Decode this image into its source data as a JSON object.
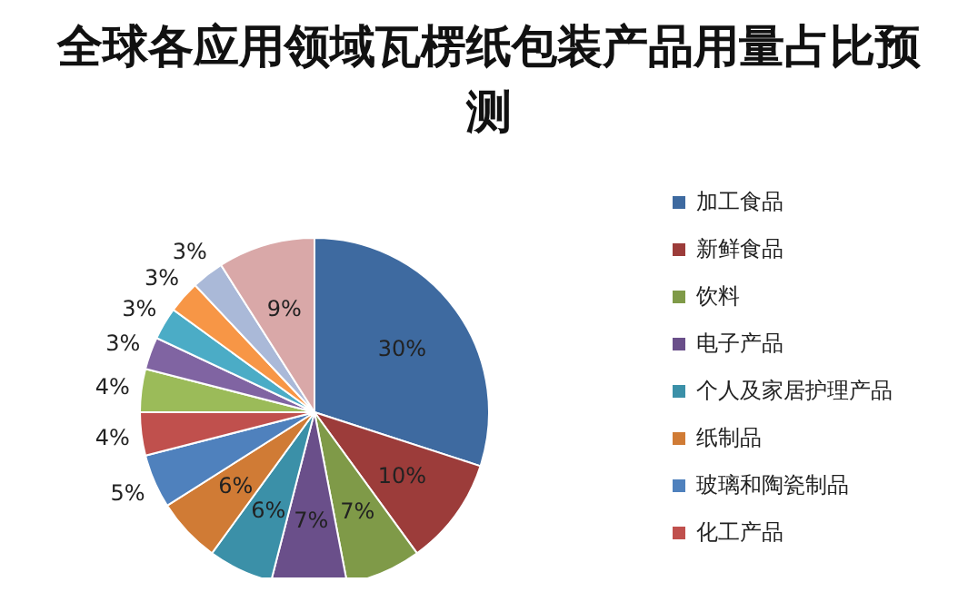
{
  "chart_data": {
    "type": "pie",
    "title": "全球各应用领域瓦楞纸包装产品用量占比预测",
    "categories": [
      "加工食品",
      "新鲜食品",
      "饮料",
      "电子产品",
      "个人及家居护理产品",
      "纸制品",
      "玻璃和陶瓷制品",
      "化工产品",
      null,
      null,
      null,
      null,
      null,
      null
    ],
    "values": [
      30,
      10,
      7,
      7,
      6,
      6,
      5,
      4,
      4,
      3,
      3,
      3,
      3,
      9
    ],
    "value_labels": [
      "30%",
      "10%",
      "7%",
      "7%",
      "6%",
      "6%",
      "5%",
      "4%",
      "4%",
      "3%",
      "3%",
      "3%",
      "3%",
      "9%"
    ],
    "colors": [
      "#3e6aa0",
      "#9c3c3a",
      "#7f9a48",
      "#6a4f8a",
      "#3b90a8",
      "#d07b35",
      "#4f81bd",
      "#c0504d",
      "#9bbb59",
      "#8064a2",
      "#4bacc6",
      "#f79646",
      "#aab9d8",
      "#d9a8a8"
    ],
    "legend": "right"
  }
}
